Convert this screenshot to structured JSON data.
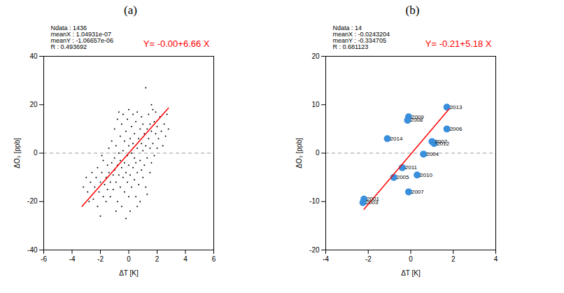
{
  "chart_data": [
    {
      "type": "scatter",
      "title": "(a)",
      "xlabel": "ΔT [K]",
      "ylabel": "ΔO₃ [ppb]",
      "xlim": [
        -6,
        6
      ],
      "xticks": [
        -6,
        -4,
        -2,
        0,
        2,
        4,
        6
      ],
      "ylim": [
        -40,
        40
      ],
      "yticks": [
        -40,
        -20,
        0,
        20,
        40
      ],
      "color": "#000000",
      "marker": "point",
      "annotations": [
        "Ndata : 1436",
        "meanX : 1.04931e-07",
        "meanY : -1.06657e-06",
        "R : 0.493692"
      ],
      "hline": 0,
      "fit_line": {
        "x": [
          -3.3,
          2.8
        ],
        "y": [
          -22.0,
          18.6
        ],
        "color": "#ff0000",
        "label": "Y= -0.00+6.66 X"
      },
      "x": [
        -3.2,
        -3.0,
        -2.9,
        -2.7,
        -2.6,
        -2.5,
        -2.4,
        -2.3,
        -2.2,
        -2.2,
        -2.1,
        -2.0,
        -2.0,
        -1.9,
        -1.8,
        -1.8,
        -1.7,
        -1.6,
        -1.6,
        -1.5,
        -1.5,
        -1.4,
        -1.4,
        -1.3,
        -1.3,
        -1.2,
        -1.2,
        -1.1,
        -1.1,
        -1.0,
        -1.0,
        -1.0,
        -0.9,
        -0.9,
        -0.8,
        -0.8,
        -0.8,
        -0.7,
        -0.7,
        -0.7,
        -0.6,
        -0.6,
        -0.6,
        -0.5,
        -0.5,
        -0.5,
        -0.4,
        -0.4,
        -0.4,
        -0.3,
        -0.3,
        -0.3,
        -0.2,
        -0.2,
        -0.2,
        -0.1,
        -0.1,
        -0.1,
        0.0,
        0.0,
        0.0,
        0.0,
        0.1,
        0.1,
        0.1,
        0.2,
        0.2,
        0.2,
        0.3,
        0.3,
        0.3,
        0.4,
        0.4,
        0.4,
        0.5,
        0.5,
        0.5,
        0.6,
        0.6,
        0.6,
        0.7,
        0.7,
        0.8,
        0.8,
        0.8,
        0.9,
        0.9,
        0.9,
        1.0,
        1.0,
        1.0,
        1.1,
        1.1,
        1.2,
        1.2,
        1.2,
        1.3,
        1.3,
        1.4,
        1.4,
        1.5,
        1.5,
        1.5,
        1.6,
        1.6,
        1.7,
        1.7,
        1.8,
        1.8,
        1.9,
        1.9,
        2.0,
        2.0,
        2.1,
        2.2,
        2.3,
        2.4,
        2.5,
        2.6,
        2.7,
        2.8,
        -2.8,
        -1.9,
        -0.9,
        0.6,
        1.3,
        1.6
      ],
      "y": [
        -14,
        -10,
        -16,
        -12,
        -8,
        -19,
        -14,
        -10,
        -22,
        -6,
        -16,
        -12,
        -26,
        -8,
        -18,
        -3,
        -13,
        -10,
        -20,
        -5,
        -15,
        -8,
        2,
        -12,
        -18,
        -4,
        5,
        -9,
        -15,
        -2,
        -7,
        10,
        -12,
        3,
        -5,
        -20,
        14,
        -9,
        0,
        17,
        -14,
        -3,
        7,
        -6,
        -22,
        12,
        -10,
        1,
        16,
        -16,
        -4,
        5,
        -27,
        -8,
        9,
        -12,
        -1,
        14,
        -18,
        -5,
        3,
        18,
        -9,
        6,
        -24,
        -14,
        0,
        11,
        -6,
        4,
        16,
        -11,
        -2,
        8,
        -18,
        -4,
        13,
        -8,
        2,
        17,
        -13,
        6,
        -3,
        10,
        -20,
        -7,
        4,
        15,
        -10,
        1,
        12,
        -5,
        8,
        27,
        -14,
        3,
        10,
        -2,
        6,
        16,
        -8,
        2,
        12,
        9,
        -4,
        18,
        4,
        13,
        -1,
        8,
        17,
        2,
        11,
        6,
        15,
        9,
        3,
        12,
        7,
        16,
        10,
        -20,
        -1,
        -24,
        -22,
        -17,
        20
      ]
    },
    {
      "type": "scatter",
      "title": "(b)",
      "xlabel": "ΔT [K]",
      "ylabel": "ΔO₃ [ppb]",
      "xlim": [
        -4,
        4
      ],
      "xticks": [
        -4,
        -2,
        0,
        2,
        4
      ],
      "ylim": [
        -20,
        20
      ],
      "yticks": [
        -20,
        -10,
        0,
        10,
        20
      ],
      "color": "#3a8fdc",
      "marker": "circle",
      "annotations": [
        "Ndata : 14",
        "meanX : -0.0243204",
        "meanY : -0.334705",
        "R : 0.681123"
      ],
      "hline": 0,
      "fit_line": {
        "x": [
          -2.2,
          1.8
        ],
        "y": [
          -11.6,
          9.1
        ],
        "color": "#ff0000",
        "label": "Y= -0.21+5.18 X"
      },
      "labels": [
        "2001",
        "2002",
        "2003",
        "2004",
        "2005",
        "2006",
        "2007",
        "2008",
        "2009",
        "2010",
        "2011",
        "2012",
        "2013",
        "2014"
      ],
      "x": [
        -2.2,
        1.0,
        -2.25,
        0.6,
        -0.8,
        1.7,
        -0.1,
        -0.15,
        -0.1,
        0.3,
        -0.4,
        1.1,
        1.7,
        -1.1
      ],
      "y": [
        -9.5,
        2.4,
        -10.2,
        -0.2,
        -5.0,
        5.0,
        -8.0,
        6.8,
        7.5,
        -4.5,
        -3.0,
        2.0,
        9.5,
        3.0
      ]
    }
  ]
}
